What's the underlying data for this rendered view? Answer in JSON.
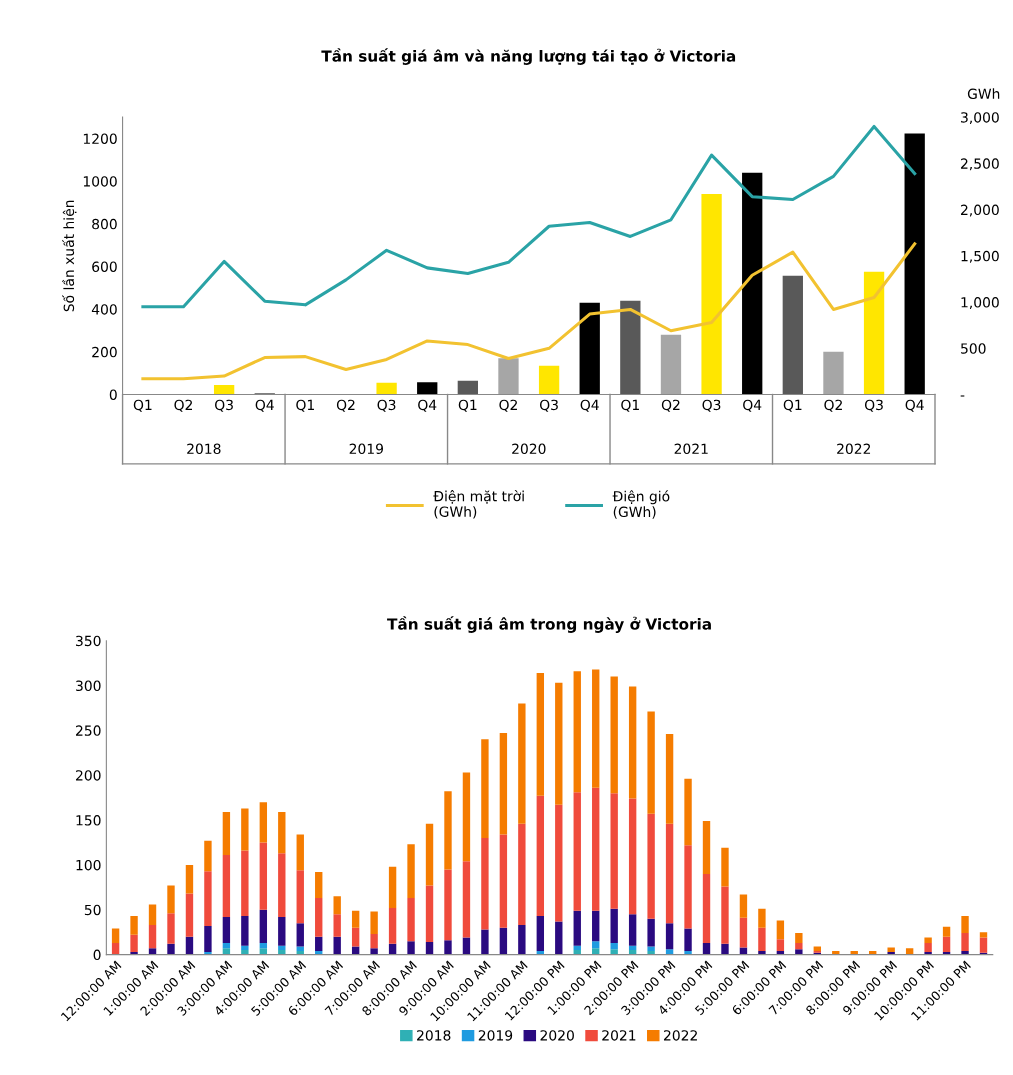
{
  "chart_data": [
    {
      "type": "bar",
      "title": "Tần suất giá âm và năng lượng tái tạo ở Victoria",
      "ylabel": "Số lần xuất hiện",
      "y2label": "GWh",
      "categories": [
        "Q1",
        "Q2",
        "Q3",
        "Q4",
        "Q1",
        "Q2",
        "Q3",
        "Q4",
        "Q1",
        "Q2",
        "Q3",
        "Q4",
        "Q1",
        "Q2",
        "Q3",
        "Q4",
        "Q1",
        "Q2",
        "Q3",
        "Q4"
      ],
      "series": [
        {
          "type": "bar",
          "colors": [
            "#595959",
            "#a6a6a6",
            "#ffe600",
            "#000000",
            "#595959",
            "#a6a6a6",
            "#ffe600",
            "#000000",
            "#595959",
            "#a6a6a6",
            "#ffe600",
            "#000000",
            "#595959",
            "#a6a6a6",
            "#ffe600",
            "#000000",
            "#595959",
            "#a6a6a6",
            "#ffe600",
            "#000000"
          ],
          "values": [
            0,
            0,
            45,
            5,
            3,
            2,
            55,
            58,
            65,
            170,
            135,
            430,
            440,
            280,
            940,
            1040,
            557,
            200,
            576,
            1223
          ]
        },
        {
          "type": "line",
          "name": "Điện mặt trời\n(GWh)",
          "color": "#f2c230",
          "axis": "y2",
          "values": [
            170,
            170,
            200,
            400,
            410,
            270,
            380,
            580,
            540,
            390,
            500,
            870,
            920,
            690,
            780,
            1290,
            1540,
            920,
            1050,
            1630
          ]
        },
        {
          "type": "line",
          "name": "Điện gió\n(GWh)",
          "color": "#2aa3a6",
          "axis": "y2",
          "values": [
            950,
            950,
            1440,
            1010,
            970,
            1240,
            1560,
            1370,
            1310,
            1430,
            1820,
            1860,
            1710,
            1890,
            2590,
            2140,
            2110,
            2360,
            2900,
            2390
          ]
        }
      ],
      "annotations": [
        "2018",
        "2019",
        "2020",
        "2021",
        "2022"
      ],
      "ylim": [
        0,
        1300
      ],
      "yticks": [
        0,
        200,
        400,
        600,
        800,
        1000,
        1200
      ],
      "y2lim": [
        0,
        3000
      ],
      "y2ticks": [
        {
          "value": 0,
          "label": "-"
        },
        500,
        {
          "value": 1000,
          "label": "1,000"
        },
        {
          "value": 1500,
          "label": "1,500"
        },
        {
          "value": 2000,
          "label": "2,000"
        },
        {
          "value": 2500,
          "label": "2,500"
        },
        {
          "value": 3000,
          "label": "3,000"
        }
      ],
      "grid": false,
      "legend": "bottom"
    },
    {
      "type": "bar",
      "stacked": true,
      "title": "Tần suất giá âm trong ngày ở Victoria",
      "categories": [
        "12:00:00 AM",
        null,
        "1:00:00 AM",
        null,
        "2:00:00 AM",
        null,
        "3:00:00 AM",
        null,
        "4:00:00 AM",
        null,
        "5:00:00 AM",
        null,
        "6:00:00 AM",
        null,
        "7:00:00 AM",
        null,
        "8:00:00 AM",
        null,
        "9:00:00 AM",
        null,
        "10:00:00 AM",
        null,
        "11:00:00 AM",
        null,
        "12:00:00 PM",
        null,
        "1:00:00 PM",
        null,
        "2:00:00 PM",
        null,
        "3:00:00 PM",
        null,
        "4:00:00 PM",
        null,
        "5:00:00 PM",
        null,
        "6:00:00 PM",
        null,
        "7:00:00 PM",
        null,
        "8:00:00 PM",
        null,
        "9:00:00 PM",
        null,
        "10:00:00 PM",
        null,
        "11:00:00 PM",
        null
      ],
      "series": [
        {
          "name": "2018",
          "color": "#2fb0b5",
          "values": [
            0,
            0,
            0,
            0,
            0,
            0,
            7,
            5,
            7,
            5,
            4,
            0,
            0,
            0,
            0,
            0,
            0,
            0,
            0,
            0,
            0,
            0,
            0,
            0,
            0,
            5,
            7,
            6,
            5,
            4,
            0,
            0,
            0,
            0,
            0,
            0,
            0,
            0,
            0,
            0,
            0,
            0,
            0,
            0,
            0,
            0,
            0,
            0
          ]
        },
        {
          "name": "2019",
          "color": "#1f9be0",
          "values": [
            0,
            0,
            0,
            0,
            0,
            3,
            6,
            5,
            6,
            5,
            5,
            4,
            0,
            0,
            0,
            0,
            0,
            0,
            0,
            0,
            0,
            0,
            0,
            4,
            0,
            5,
            8,
            7,
            5,
            5,
            6,
            4,
            0,
            0,
            0,
            0,
            0,
            0,
            0,
            0,
            0,
            0,
            0,
            0,
            0,
            0,
            0,
            0
          ]
        },
        {
          "name": "2020",
          "color": "#2a0a80",
          "values": [
            0,
            3,
            7,
            12,
            20,
            29,
            29,
            33,
            37,
            32,
            26,
            16,
            20,
            9,
            7,
            12,
            15,
            14,
            16,
            19,
            28,
            30,
            33,
            39,
            37,
            39,
            34,
            38,
            35,
            31,
            29,
            25,
            13,
            12,
            8,
            4,
            4,
            6,
            2,
            0,
            0,
            0,
            3,
            0,
            3,
            3,
            4,
            2
          ]
        },
        {
          "name": "2021",
          "color": "#f04b3c",
          "values": [
            13,
            19,
            26,
            34,
            48,
            61,
            69,
            73,
            75,
            71,
            59,
            43,
            25,
            21,
            16,
            40,
            48,
            63,
            79,
            85,
            102,
            104,
            113,
            134,
            130,
            132,
            137,
            129,
            129,
            117,
            111,
            93,
            77,
            64,
            33,
            26,
            13,
            7,
            2,
            0,
            0,
            0,
            0,
            0,
            10,
            17,
            20,
            17
          ]
        },
        {
          "name": "2022",
          "color": "#f57c00",
          "values": [
            16,
            21,
            23,
            31,
            32,
            34,
            48,
            47,
            45,
            46,
            40,
            29,
            20,
            19,
            25,
            46,
            60,
            69,
            87,
            99,
            110,
            113,
            134,
            137,
            136,
            135,
            132,
            130,
            125,
            114,
            100,
            74,
            59,
            43,
            26,
            21,
            21,
            11,
            5,
            4,
            4,
            4,
            5,
            7,
            6,
            11,
            19,
            6
          ]
        }
      ],
      "ylim": [
        0,
        350
      ],
      "yticks": [
        0,
        50,
        100,
        150,
        200,
        250,
        300,
        350
      ],
      "grid": false,
      "legend": "bottom"
    }
  ]
}
